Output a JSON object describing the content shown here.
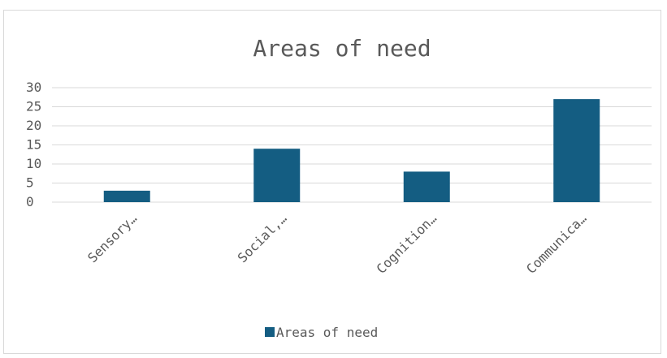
{
  "chart_data": {
    "type": "bar",
    "title": "Areas of need",
    "categories": [
      "Sensory…",
      "Social,…",
      "Cognition…",
      "Communica…"
    ],
    "series": [
      {
        "name": "Areas of need",
        "values": [
          3,
          14,
          8,
          27
        ],
        "color": "#145d82"
      }
    ],
    "ylim": [
      0,
      30
    ],
    "yticks": [
      0,
      5,
      10,
      15,
      20,
      25,
      30
    ],
    "grid": true,
    "gridColor": "#d9d9d9",
    "legend": "bottom"
  }
}
